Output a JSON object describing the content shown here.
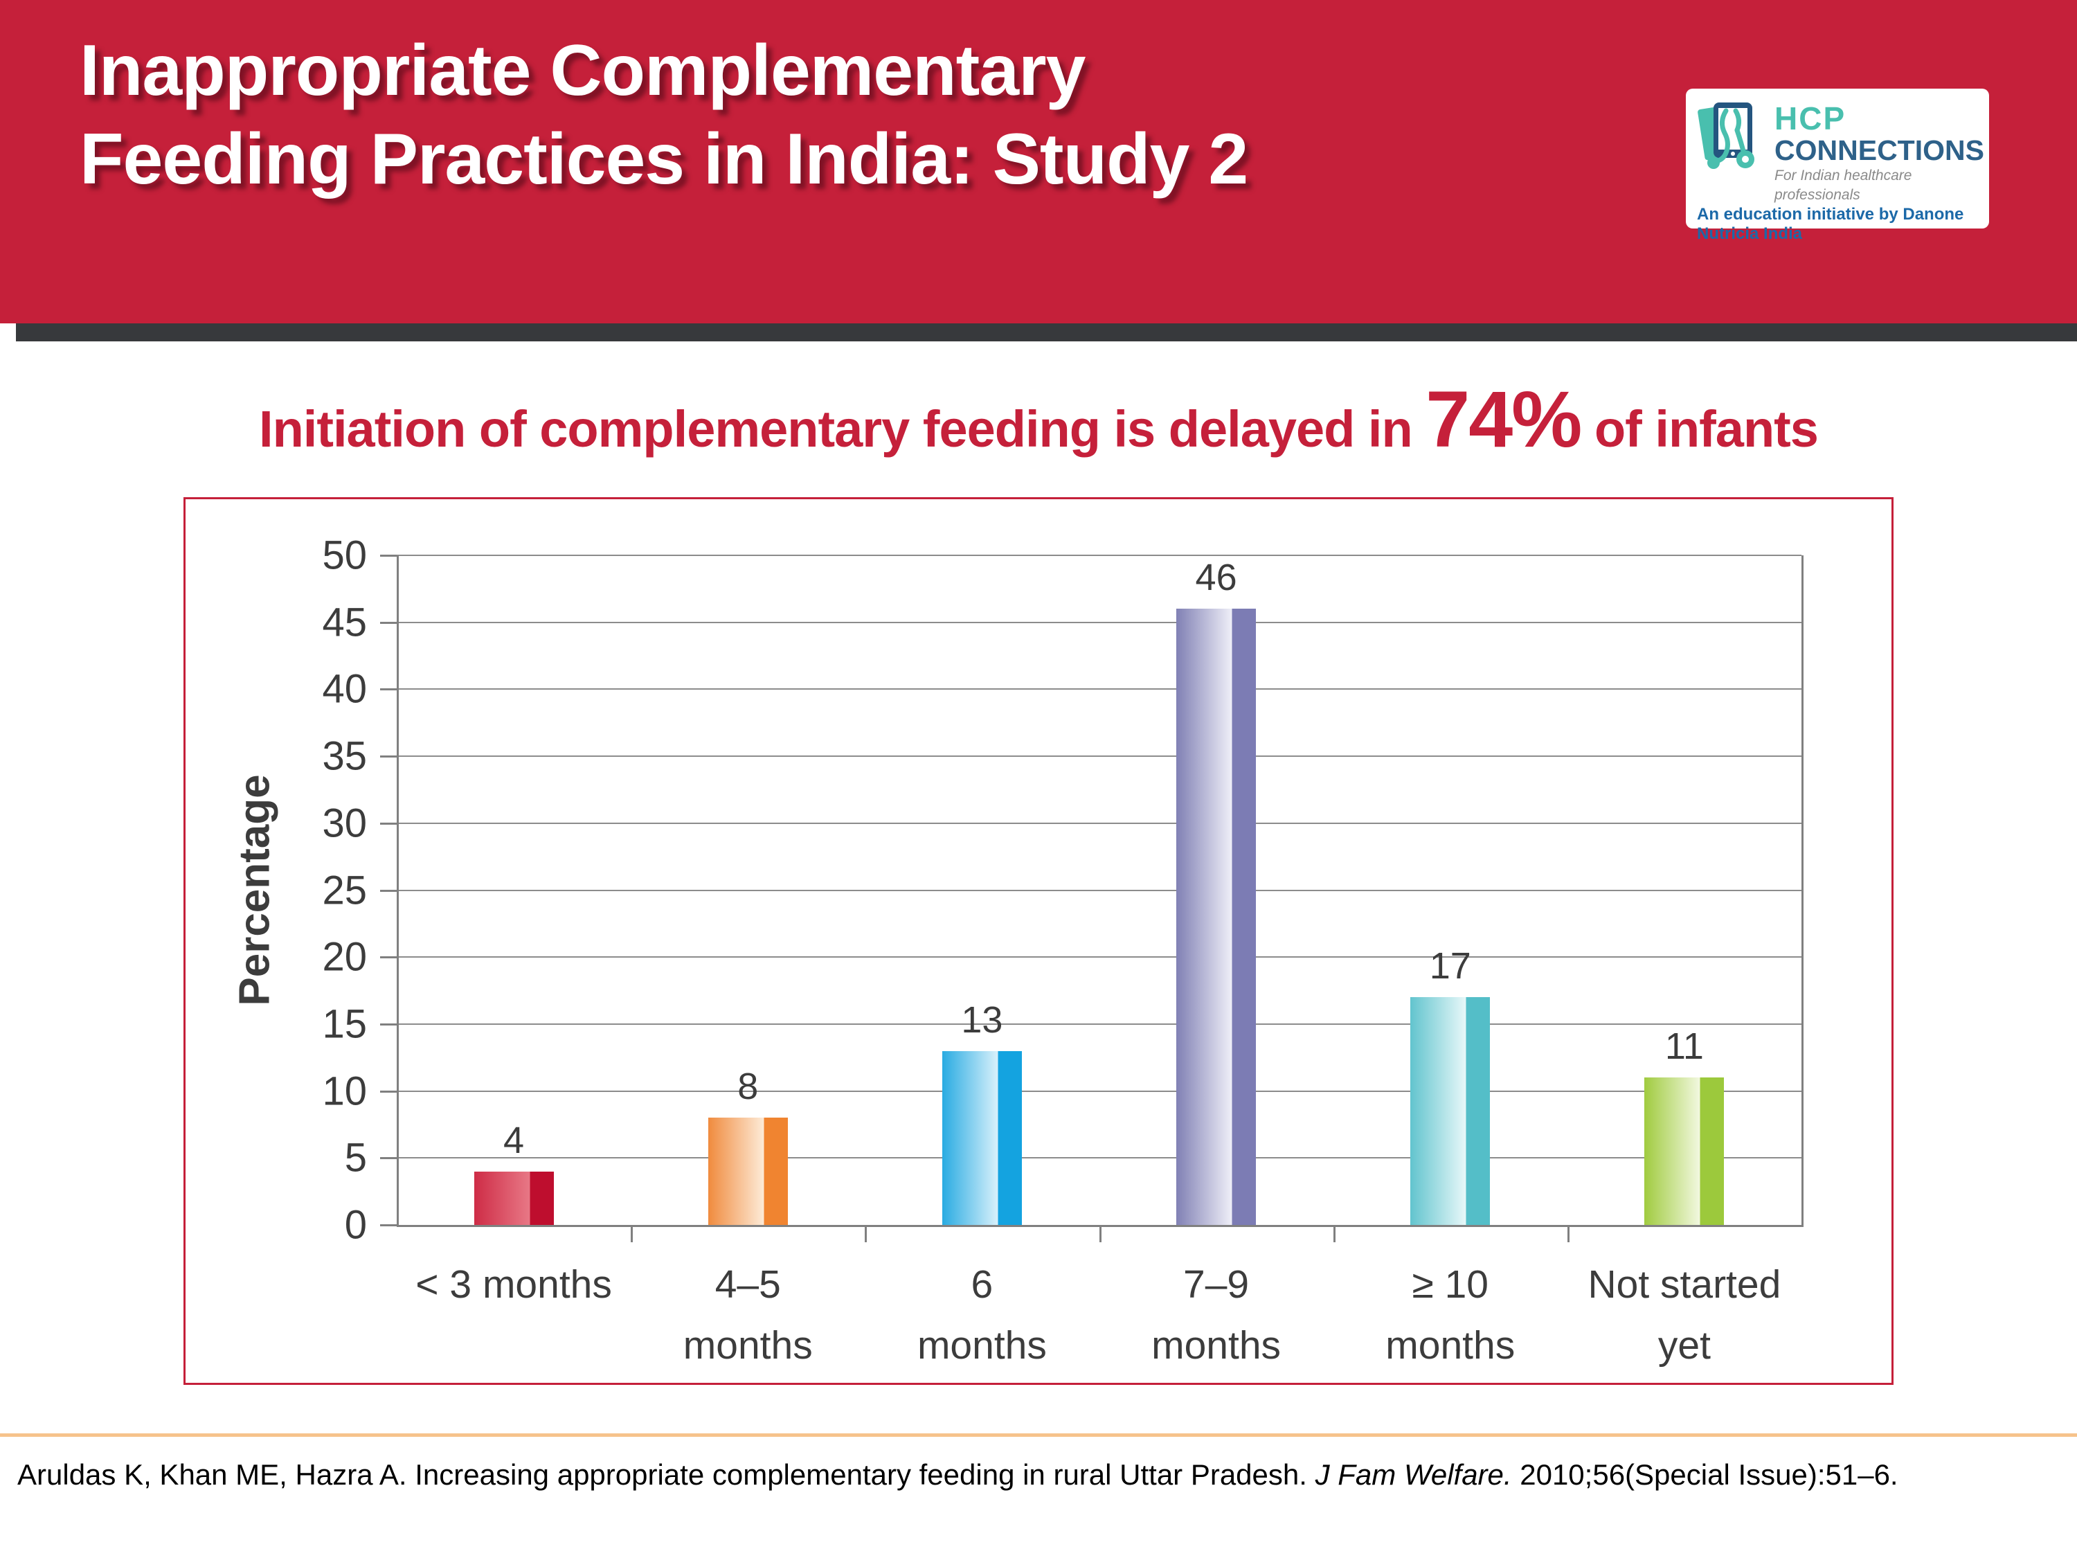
{
  "header": {
    "title_line1": "Inappropriate Complementary",
    "title_line2": "Feeding Practices in India: Study 2"
  },
  "logo": {
    "name_top": "HCP",
    "name_bottom": "CONNECTIONS",
    "tagline": "For Indian healthcare professionals",
    "initiative": "An education initiative by Danone Nutricia India",
    "icon": "tablet-stethoscope-icon",
    "colors": {
      "teal": "#49BFAE",
      "navy": "#24557F",
      "steel": "#2E6189",
      "blue": "#1C69A8",
      "gray": "#8A8A8A"
    }
  },
  "subtitle": {
    "prefix": "Initiation of complementary feeding is delayed in ",
    "highlight": "74%",
    "suffix": " of infants",
    "color": "#C5203A"
  },
  "chart_data": {
    "type": "bar",
    "title": "Initiation of complementary feeding is delayed in 74% of infants",
    "categories": [
      "< 3 months",
      "4–5 months",
      "6 months",
      "7–9 months",
      "≥ 10 months",
      "Not started yet"
    ],
    "category_lines": [
      [
        "< 3 months"
      ],
      [
        "4–5",
        "months"
      ],
      [
        "6",
        "months"
      ],
      [
        "7–9",
        "months"
      ],
      [
        "≥ 10",
        "months"
      ],
      [
        "Not started",
        "yet"
      ]
    ],
    "values": [
      4,
      8,
      13,
      46,
      17,
      11
    ],
    "xlabel": "",
    "ylabel": "Percentage",
    "ylim": [
      0,
      50
    ],
    "yticks": [
      0,
      5,
      10,
      15,
      20,
      25,
      30,
      35,
      40,
      45,
      50
    ],
    "grid": true,
    "legend": false,
    "bar_colors": [
      {
        "base": "#CE2C46",
        "light": "#E87886",
        "edge": "#BE0E2E"
      },
      {
        "base": "#F08B3E",
        "light": "#FDEBD8",
        "edge": "#F08430"
      },
      {
        "base": "#29ABE2",
        "light": "#D9F1FB",
        "edge": "#14A3E0"
      },
      {
        "base": "#8080B4",
        "light": "#EFEFF8",
        "edge": "#7C7CB4"
      },
      {
        "base": "#62C4CE",
        "light": "#E8F8F9",
        "edge": "#54BEC8"
      },
      {
        "base": "#A0CB3F",
        "light": "#F2F8E0",
        "edge": "#9CC93C"
      }
    ]
  },
  "footer": {
    "citation_plain1": "Aruldas K, Khan ME, Hazra A. Increasing appropriate complementary feeding in rural Uttar Pradesh. ",
    "citation_italic": "J Fam Welfare.",
    "citation_plain2": " 2010;56(Special Issue):51–6."
  }
}
